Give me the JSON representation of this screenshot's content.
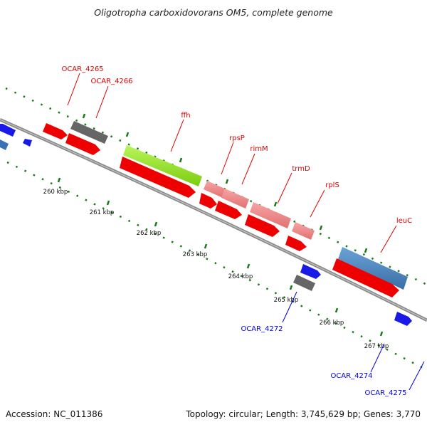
{
  "title": "Oligotropha carboxidovorans OM5, complete genome",
  "footer": {
    "accession": "Accession: NC_011386",
    "summary": "Topology: circular; Length: 3,745,629 bp; Genes: 3,770"
  },
  "colors": {
    "background": "#ffffff",
    "backbone": "#8a8a8a",
    "tick_mark": "#1a7a1a",
    "label_red": "#e00000",
    "label_blue": "#0000dd",
    "red_cds": "#ee0000",
    "pink_cds": "#f08a8a",
    "green_gene": "#99ee22",
    "steel_gene": "#4a86c0",
    "gray_gene": "#666666",
    "blue_gene": "#1a1ae8"
  },
  "ticks": [
    "260 kbp",
    "261 kbp",
    "262 kbp",
    "263 kbp",
    "264 kbp",
    "265 kbp",
    "266 kbp",
    "267 kbp"
  ],
  "labels": {
    "ocar_4265": "OCAR_4265",
    "ocar_4266": "OCAR_4266",
    "ffh": "ffh",
    "rpsP": "rpsP",
    "rimM": "rimM",
    "trmD": "trmD",
    "rplS": "rplS",
    "leuC": "leuC",
    "ocar_4272": "OCAR_4272",
    "ocar_4274": "OCAR_4274",
    "ocar_4275": "OCAR_4275"
  }
}
